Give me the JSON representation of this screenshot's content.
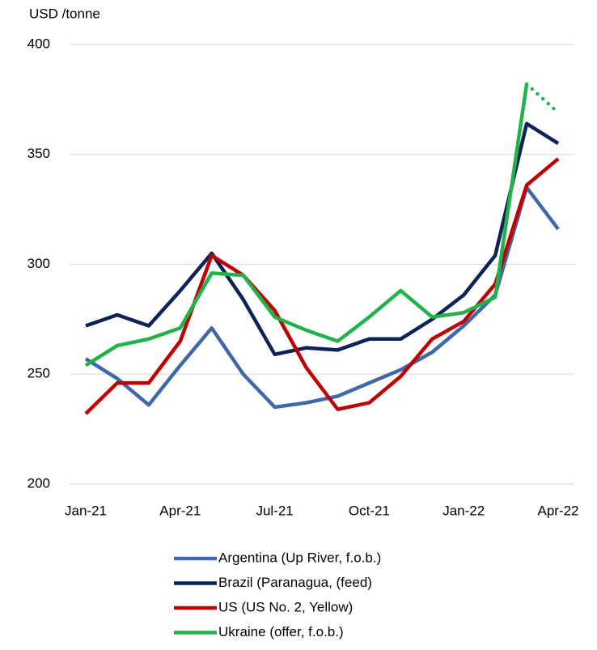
{
  "chart_data": {
    "type": "line",
    "ylabel": "USD /tonne",
    "categories": [
      "Jan-21",
      null,
      null,
      "Apr-21",
      null,
      null,
      "Jul-21",
      null,
      null,
      "Oct-21",
      null,
      null,
      "Jan-22",
      null,
      null,
      "Apr-22"
    ],
    "ylim": [
      200,
      400
    ],
    "yticks": [
      200,
      250,
      300,
      350,
      400
    ],
    "grid": true,
    "legend": "bottom",
    "series": [
      {
        "name": "Argentina (Up River, f.o.b.)",
        "color": "#4068a8",
        "values": [
          257,
          248,
          236,
          254,
          271,
          250,
          235,
          237,
          240,
          246,
          252,
          260,
          272,
          286,
          335,
          316
        ]
      },
      {
        "name": "Brazil (Paranagua, (feed)",
        "color": "#0b2356",
        "values": [
          272,
          277,
          272,
          288,
          305,
          284,
          259,
          262,
          261,
          266,
          266,
          275,
          286,
          304,
          364,
          355
        ]
      },
      {
        "name": "US (US No. 2, Yellow)",
        "color": "#c00000",
        "values": [
          232,
          246,
          246,
          265,
          304,
          295,
          279,
          253,
          234,
          237,
          249,
          266,
          274,
          291,
          336,
          348
        ]
      },
      {
        "name": "Ukraine (offer, f.o.b.)",
        "color": "#22b24c",
        "dotted_from_index": 14,
        "values": [
          254,
          263,
          266,
          271,
          296,
          295,
          276,
          270,
          265,
          276,
          288,
          276,
          278,
          285,
          382,
          369
        ]
      }
    ]
  }
}
